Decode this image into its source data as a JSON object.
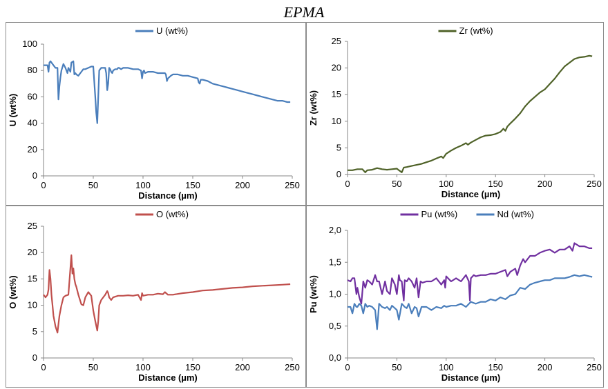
{
  "title": "EPMA",
  "chart_data": [
    {
      "type": "line",
      "xlabel": "Distance (µm)",
      "ylabel": "U (wt%)",
      "xlim": [
        0,
        250
      ],
      "ylim": [
        0,
        100
      ],
      "xticks": [
        0,
        50,
        100,
        150,
        200,
        250
      ],
      "yticks": [
        0,
        20,
        40,
        60,
        80,
        100
      ],
      "ytick_labels": [
        "0",
        "20",
        "40",
        "60",
        "80",
        "100"
      ],
      "legend": "top-center",
      "series": [
        {
          "name": "U (wt%)",
          "color": "#4a7ebb",
          "x": [
            0,
            4,
            5,
            6,
            7,
            8,
            10,
            12,
            14,
            15,
            16,
            17,
            18,
            20,
            22,
            24,
            25,
            27,
            28,
            30,
            31,
            32,
            33,
            35,
            38,
            40,
            42,
            45,
            48,
            50,
            52,
            53,
            54,
            55,
            56,
            58,
            60,
            62,
            63,
            64,
            65,
            66,
            67,
            68,
            69,
            70,
            72,
            74,
            75,
            76,
            78,
            80,
            85,
            90,
            95,
            98,
            99,
            100,
            101,
            102,
            105,
            110,
            115,
            120,
            122,
            123,
            124,
            125,
            128,
            130,
            135,
            140,
            145,
            150,
            155,
            156,
            157,
            158,
            160,
            165,
            170,
            175,
            180,
            185,
            190,
            195,
            200,
            205,
            210,
            215,
            220,
            225,
            230,
            235,
            240,
            245,
            248
          ],
          "y": [
            84,
            84,
            79,
            86,
            87,
            86,
            84,
            82,
            82,
            58,
            68,
            75,
            80,
            85,
            82,
            78,
            82,
            79,
            86,
            87,
            77,
            78,
            77,
            76,
            79,
            81,
            81,
            82,
            83,
            83,
            60,
            48,
            40,
            60,
            80,
            82,
            82,
            82,
            78,
            65,
            70,
            82,
            81,
            79,
            78,
            80,
            81,
            81,
            82,
            82,
            81,
            82,
            82,
            81,
            81,
            80,
            74,
            79,
            80,
            78,
            79,
            79,
            78,
            78,
            78,
            77,
            72,
            74,
            76,
            77,
            77,
            76,
            76,
            75,
            74,
            71,
            70,
            73,
            73,
            72,
            70,
            69,
            68,
            67,
            66,
            65,
            64,
            63,
            62,
            61,
            60,
            59,
            58,
            57,
            57,
            56,
            56
          ]
        }
      ]
    },
    {
      "type": "line",
      "xlabel": "Distance (µm)",
      "ylabel": "Zr (wt%)",
      "xlim": [
        0,
        250
      ],
      "ylim": [
        0,
        25
      ],
      "xticks": [
        0,
        50,
        100,
        150,
        200,
        250
      ],
      "yticks": [
        0,
        5,
        10,
        15,
        20,
        25
      ],
      "ytick_labels": [
        "0",
        "5",
        "10",
        "15",
        "20",
        "25"
      ],
      "legend": "top-center",
      "series": [
        {
          "name": "Zr (wt%)",
          "color": "#4f6228",
          "x": [
            0,
            5,
            10,
            15,
            18,
            20,
            25,
            30,
            35,
            40,
            45,
            50,
            52,
            55,
            57,
            60,
            65,
            70,
            75,
            80,
            85,
            90,
            95,
            97,
            100,
            105,
            110,
            115,
            120,
            122,
            125,
            130,
            135,
            140,
            145,
            150,
            155,
            158,
            160,
            162,
            165,
            170,
            175,
            180,
            185,
            190,
            195,
            200,
            205,
            210,
            215,
            220,
            225,
            230,
            235,
            240,
            245,
            248
          ],
          "y": [
            0.8,
            0.8,
            1.0,
            1.0,
            0.4,
            0.8,
            0.9,
            1.2,
            1.0,
            0.9,
            1.0,
            1.1,
            0.8,
            0.4,
            1.3,
            1.4,
            1.6,
            1.8,
            2.0,
            2.3,
            2.6,
            3.0,
            3.4,
            3.1,
            3.9,
            4.5,
            5.0,
            5.4,
            5.9,
            5.6,
            6.0,
            6.5,
            7.0,
            7.3,
            7.4,
            7.6,
            8.0,
            8.6,
            8.2,
            9.0,
            9.6,
            10.5,
            11.5,
            12.8,
            13.8,
            14.6,
            15.4,
            16.0,
            17.0,
            18.0,
            19.2,
            20.3,
            21.0,
            21.7,
            22.0,
            22.1,
            22.3,
            22.2
          ]
        }
      ]
    },
    {
      "type": "line",
      "xlabel": "Distance (µm)",
      "ylabel": "O (wt%)",
      "xlim": [
        0,
        250
      ],
      "ylim": [
        0,
        25
      ],
      "xticks": [
        0,
        50,
        100,
        150,
        200,
        250
      ],
      "yticks": [
        0,
        5,
        10,
        15,
        20,
        25
      ],
      "ytick_labels": [
        "0",
        "5",
        "10",
        "15",
        "20",
        "25"
      ],
      "legend": "top-center",
      "series": [
        {
          "name": "O (wt%)",
          "color": "#c0504d",
          "x": [
            0,
            2,
            4,
            5,
            6,
            7,
            8,
            9,
            10,
            12,
            14,
            16,
            18,
            20,
            22,
            25,
            28,
            29,
            30,
            31,
            32,
            33,
            35,
            38,
            40,
            42,
            45,
            48,
            50,
            52,
            54,
            55,
            56,
            58,
            60,
            62,
            64,
            65,
            66,
            68,
            70,
            75,
            80,
            85,
            90,
            95,
            98,
            99,
            100,
            105,
            110,
            115,
            120,
            122,
            125,
            130,
            140,
            150,
            160,
            170,
            180,
            190,
            200,
            210,
            220,
            230,
            240,
            248
          ],
          "y": [
            12,
            11.5,
            12,
            13,
            16.7,
            15,
            12,
            10,
            8,
            6,
            4.8,
            8,
            10,
            11.5,
            11.8,
            12,
            19.5,
            16,
            17,
            15,
            14,
            13.5,
            12,
            10.2,
            10,
            11.5,
            12.5,
            11.8,
            9,
            7,
            5.2,
            7,
            10,
            11,
            11.5,
            12,
            12.7,
            12.3,
            11.5,
            11,
            11.5,
            11.8,
            11.8,
            11.9,
            11.8,
            12,
            11,
            12.3,
            11.8,
            12,
            12,
            12.2,
            12.1,
            12.5,
            12,
            12,
            12.3,
            12.5,
            12.8,
            12.9,
            13.1,
            13.3,
            13.4,
            13.6,
            13.7,
            13.8,
            13.9,
            14
          ]
        }
      ]
    },
    {
      "type": "line",
      "xlabel": "Distance (µm)",
      "ylabel": "Pu (wt%)",
      "xlim": [
        0,
        250
      ],
      "ylim": [
        0,
        2
      ],
      "xticks": [
        0,
        50,
        100,
        150,
        200,
        250
      ],
      "yticks": [
        0,
        0.5,
        1,
        1.5,
        2
      ],
      "ytick_labels": [
        "0,0",
        "0,5",
        "1,0",
        "1,5",
        "2,0"
      ],
      "legend": "top-center",
      "series": [
        {
          "name": "Pu (wt%)",
          "color": "#7030a0",
          "x": [
            0,
            3,
            5,
            7,
            9,
            10,
            12,
            14,
            16,
            18,
            20,
            22,
            25,
            28,
            30,
            32,
            35,
            38,
            40,
            43,
            45,
            48,
            50,
            52,
            53,
            55,
            57,
            58,
            60,
            62,
            65,
            68,
            70,
            72,
            74,
            76,
            80,
            85,
            90,
            95,
            98,
            99,
            100,
            105,
            110,
            115,
            120,
            123,
            124,
            125,
            128,
            130,
            135,
            140,
            145,
            150,
            155,
            160,
            162,
            165,
            170,
            172,
            175,
            178,
            180,
            185,
            190,
            195,
            200,
            205,
            210,
            215,
            220,
            225,
            228,
            230,
            235,
            240,
            245,
            248
          ],
          "y": [
            1.22,
            1.2,
            1.25,
            1.25,
            1.0,
            1.1,
            0.95,
            0.85,
            1.2,
            1.1,
            1.22,
            1.2,
            1.15,
            1.3,
            1.2,
            1.2,
            1.0,
            1.2,
            1.05,
            1.0,
            1.25,
            1.15,
            1.0,
            1.3,
            1.22,
            1.2,
            0.9,
            1.22,
            1.2,
            1.25,
            1.2,
            1.1,
            1.25,
            0.95,
            1.2,
            1.18,
            1.2,
            1.2,
            1.25,
            1.15,
            1.22,
            1.1,
            1.28,
            1.2,
            1.25,
            1.2,
            1.3,
            1.2,
            0.9,
            1.25,
            1.3,
            1.28,
            1.3,
            1.3,
            1.32,
            1.32,
            1.35,
            1.38,
            1.28,
            1.35,
            1.4,
            1.3,
            1.45,
            1.55,
            1.5,
            1.6,
            1.6,
            1.65,
            1.68,
            1.7,
            1.65,
            1.7,
            1.7,
            1.75,
            1.68,
            1.8,
            1.75,
            1.75,
            1.72,
            1.72
          ]
        },
        {
          "name": "Nd (wt%)",
          "color": "#4a7ebb",
          "x": [
            0,
            3,
            5,
            7,
            9,
            10,
            12,
            14,
            16,
            18,
            20,
            22,
            25,
            28,
            30,
            32,
            35,
            38,
            40,
            43,
            45,
            48,
            50,
            52,
            55,
            58,
            60,
            62,
            65,
            68,
            70,
            72,
            75,
            80,
            85,
            90,
            95,
            98,
            100,
            105,
            110,
            115,
            120,
            125,
            130,
            135,
            140,
            145,
            150,
            155,
            160,
            165,
            170,
            175,
            180,
            185,
            190,
            195,
            200,
            205,
            210,
            215,
            220,
            225,
            230,
            235,
            240,
            245,
            248
          ],
          "y": [
            0.8,
            0.8,
            0.7,
            0.85,
            0.8,
            0.8,
            0.85,
            0.82,
            0.7,
            0.85,
            0.8,
            0.82,
            0.8,
            0.75,
            0.45,
            0.85,
            0.8,
            0.78,
            0.8,
            0.75,
            0.82,
            0.78,
            0.75,
            0.6,
            0.85,
            0.8,
            0.78,
            0.85,
            0.7,
            0.8,
            0.78,
            0.65,
            0.8,
            0.8,
            0.75,
            0.8,
            0.78,
            0.82,
            0.8,
            0.82,
            0.82,
            0.85,
            0.8,
            0.88,
            0.85,
            0.88,
            0.88,
            0.92,
            0.9,
            0.95,
            0.92,
            0.98,
            1.0,
            1.1,
            1.08,
            1.15,
            1.18,
            1.2,
            1.22,
            1.22,
            1.25,
            1.25,
            1.25,
            1.27,
            1.3,
            1.28,
            1.3,
            1.28,
            1.27
          ]
        }
      ]
    }
  ]
}
